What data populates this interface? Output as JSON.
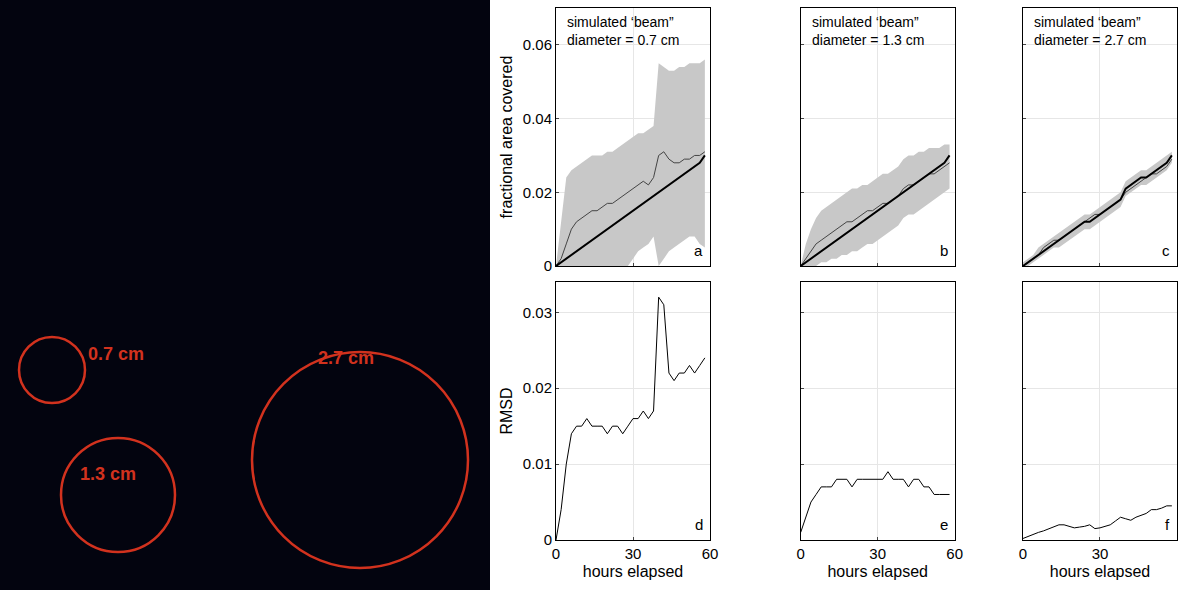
{
  "image": {
    "labels": [
      "0.7 cm",
      "1.3 cm",
      "2.7 cm"
    ],
    "color": "#d2321e"
  },
  "chart_data": [
    {
      "type": "line",
      "title": "simulated ‘beam” diameter = 0.7 cm",
      "panel": "a",
      "y_label": "fractional area covered",
      "tick_labels": "y",
      "grid": true,
      "xlim": [
        0,
        60
      ],
      "xticks": [
        0,
        30,
        60
      ],
      "ylim": [
        0,
        0.07
      ],
      "yticks": [
        0,
        0.02,
        0.04,
        0.06
      ],
      "x": [
        0,
        2,
        4,
        6,
        8,
        10,
        12,
        14,
        16,
        18,
        20,
        22,
        24,
        26,
        28,
        30,
        32,
        34,
        36,
        38,
        40,
        42,
        44,
        46,
        48,
        50,
        52,
        54,
        56,
        58
      ],
      "series": [
        {
          "type": "band",
          "color": "#c8c8c8",
          "lower": [
            0,
            0,
            0,
            0,
            0,
            0,
            0,
            0,
            0,
            0,
            0,
            0,
            0,
            0,
            0,
            0.002,
            0.004,
            0.005,
            0.006,
            0.008,
            0,
            0.002,
            0.004,
            0.005,
            0.006,
            0.007,
            0.008,
            0.008,
            0.006,
            0.005
          ],
          "upper": [
            0,
            0.012,
            0.024,
            0.026,
            0.027,
            0.028,
            0.029,
            0.03,
            0.03,
            0.03,
            0.031,
            0.031,
            0.032,
            0.033,
            0.034,
            0.035,
            0.036,
            0.036,
            0.037,
            0.038,
            0.055,
            0.054,
            0.053,
            0.053,
            0.054,
            0.054,
            0.055,
            0.055,
            0.055,
            0.056
          ]
        },
        {
          "type": "line",
          "color": "#444444",
          "line_style": "thin",
          "values": [
            0,
            0.002,
            0.006,
            0.01,
            0.012,
            0.013,
            0.014,
            0.015,
            0.015,
            0.016,
            0.017,
            0.017,
            0.018,
            0.019,
            0.02,
            0.021,
            0.022,
            0.023,
            0.022,
            0.024,
            0.03,
            0.031,
            0.029,
            0.028,
            0.028,
            0.029,
            0.029,
            0.03,
            0.03,
            0.031
          ]
        },
        {
          "type": "line",
          "color": "#000000",
          "line_style": "thick",
          "values": [
            0,
            0.001,
            0.002,
            0.003,
            0.004,
            0.005,
            0.006,
            0.007,
            0.008,
            0.009,
            0.01,
            0.011,
            0.012,
            0.013,
            0.014,
            0.015,
            0.016,
            0.017,
            0.018,
            0.019,
            0.02,
            0.021,
            0.022,
            0.023,
            0.024,
            0.025,
            0.026,
            0.027,
            0.028,
            0.03
          ]
        }
      ]
    },
    {
      "type": "line",
      "title": "simulated ‘beam” diameter = 1.3 cm",
      "panel": "b",
      "tick_labels": false,
      "grid": true,
      "xlim": [
        0,
        60
      ],
      "xticks": [
        0,
        30,
        60
      ],
      "ylim": [
        0,
        0.07
      ],
      "yticks": [
        0,
        0.02,
        0.04,
        0.06
      ],
      "x": [
        0,
        2,
        4,
        6,
        8,
        10,
        12,
        14,
        16,
        18,
        20,
        22,
        24,
        26,
        28,
        30,
        32,
        34,
        36,
        38,
        40,
        42,
        44,
        46,
        48,
        50,
        52,
        54,
        56,
        58
      ],
      "series": [
        {
          "type": "band",
          "color": "#c8c8c8",
          "lower": [
            0,
            0,
            0,
            0,
            0.001,
            0.001,
            0.002,
            0.002,
            0.003,
            0.003,
            0.004,
            0.004,
            0.005,
            0.006,
            0.006,
            0.007,
            0.008,
            0.009,
            0.01,
            0.011,
            0.013,
            0.014,
            0.014,
            0.015,
            0.016,
            0.017,
            0.018,
            0.019,
            0.02,
            0.021
          ],
          "upper": [
            0,
            0.006,
            0.01,
            0.013,
            0.015,
            0.016,
            0.017,
            0.018,
            0.019,
            0.02,
            0.021,
            0.021,
            0.022,
            0.022,
            0.023,
            0.024,
            0.025,
            0.025,
            0.026,
            0.027,
            0.029,
            0.03,
            0.03,
            0.031,
            0.031,
            0.032,
            0.032,
            0.032,
            0.033,
            0.033
          ]
        },
        {
          "type": "line",
          "color": "#444444",
          "line_style": "thin",
          "values": [
            0,
            0.002,
            0.004,
            0.006,
            0.007,
            0.008,
            0.009,
            0.01,
            0.011,
            0.012,
            0.012,
            0.013,
            0.014,
            0.015,
            0.015,
            0.016,
            0.017,
            0.017,
            0.018,
            0.019,
            0.021,
            0.022,
            0.022,
            0.023,
            0.024,
            0.025,
            0.025,
            0.026,
            0.027,
            0.028
          ]
        },
        {
          "type": "line",
          "color": "#000000",
          "line_style": "thick",
          "values": [
            0,
            0.001,
            0.002,
            0.003,
            0.004,
            0.005,
            0.006,
            0.007,
            0.008,
            0.009,
            0.01,
            0.011,
            0.012,
            0.013,
            0.014,
            0.015,
            0.016,
            0.017,
            0.018,
            0.019,
            0.02,
            0.021,
            0.022,
            0.023,
            0.024,
            0.025,
            0.026,
            0.027,
            0.028,
            0.03
          ]
        }
      ]
    },
    {
      "type": "line",
      "title": "simulated ‘beam” diameter = 2.7 cm",
      "panel": "c",
      "tick_labels": false,
      "grid": true,
      "xlim": [
        0,
        60
      ],
      "xticks": [
        0,
        30,
        60
      ],
      "ylim": [
        0,
        0.07
      ],
      "yticks": [
        0,
        0.02,
        0.04,
        0.06
      ],
      "x": [
        0,
        2,
        4,
        6,
        8,
        10,
        12,
        14,
        16,
        18,
        20,
        22,
        24,
        26,
        28,
        30,
        32,
        34,
        36,
        38,
        40,
        42,
        44,
        46,
        48,
        50,
        52,
        54,
        56,
        58
      ],
      "series": [
        {
          "type": "band",
          "color": "#c8c8c8",
          "lower": [
            0,
            0,
            0.001,
            0.002,
            0.003,
            0.004,
            0.005,
            0.005,
            0.006,
            0.007,
            0.008,
            0.009,
            0.01,
            0.01,
            0.011,
            0.012,
            0.013,
            0.014,
            0.015,
            0.016,
            0.019,
            0.02,
            0.021,
            0.022,
            0.022,
            0.023,
            0.024,
            0.025,
            0.026,
            0.028
          ],
          "upper": [
            0.001,
            0.002,
            0.003,
            0.005,
            0.006,
            0.007,
            0.008,
            0.009,
            0.01,
            0.011,
            0.012,
            0.013,
            0.014,
            0.014,
            0.015,
            0.016,
            0.017,
            0.018,
            0.019,
            0.02,
            0.023,
            0.024,
            0.025,
            0.026,
            0.026,
            0.027,
            0.028,
            0.029,
            0.03,
            0.031
          ]
        },
        {
          "type": "line",
          "color": "#444444",
          "line_style": "thin",
          "values": [
            0,
            0.001,
            0.002,
            0.003,
            0.005,
            0.006,
            0.007,
            0.007,
            0.008,
            0.009,
            0.01,
            0.011,
            0.012,
            0.013,
            0.014,
            0.014,
            0.015,
            0.016,
            0.017,
            0.018,
            0.02,
            0.021,
            0.022,
            0.023,
            0.024,
            0.025,
            0.025,
            0.026,
            0.027,
            0.029
          ]
        },
        {
          "type": "line",
          "color": "#000000",
          "line_style": "thick",
          "values": [
            0,
            0.001,
            0.002,
            0.003,
            0.004,
            0.005,
            0.006,
            0.007,
            0.008,
            0.009,
            0.01,
            0.011,
            0.012,
            0.012,
            0.013,
            0.014,
            0.015,
            0.016,
            0.017,
            0.018,
            0.021,
            0.022,
            0.023,
            0.024,
            0.024,
            0.025,
            0.026,
            0.027,
            0.028,
            0.03
          ]
        }
      ]
    },
    {
      "type": "line",
      "panel": "d",
      "x_label": "hours elapsed",
      "y_label": "RMSD",
      "tick_labels": true,
      "grid": true,
      "xlim": [
        0,
        60
      ],
      "xticks": [
        0,
        30,
        60
      ],
      "ylim": [
        0,
        0.034
      ],
      "yticks": [
        0,
        0.01,
        0.02,
        0.03
      ],
      "x": [
        0,
        2,
        4,
        6,
        8,
        10,
        12,
        14,
        16,
        18,
        20,
        22,
        24,
        26,
        28,
        30,
        32,
        34,
        36,
        38,
        40,
        42,
        44,
        46,
        48,
        50,
        52,
        54,
        56,
        58
      ],
      "series": [
        {
          "type": "line",
          "color": "#000000",
          "line_style": "thin",
          "values": [
            0,
            0.004,
            0.01,
            0.014,
            0.015,
            0.015,
            0.016,
            0.015,
            0.015,
            0.015,
            0.014,
            0.015,
            0.015,
            0.014,
            0.015,
            0.016,
            0.016,
            0.017,
            0.016,
            0.017,
            0.032,
            0.031,
            0.022,
            0.021,
            0.022,
            0.022,
            0.023,
            0.022,
            0.023,
            0.024
          ]
        }
      ]
    },
    {
      "type": "line",
      "panel": "e",
      "x_label": "hours elapsed",
      "tick_labels": "x",
      "grid": true,
      "xlim": [
        0,
        60
      ],
      "xticks": [
        0,
        30,
        60
      ],
      "ylim": [
        0,
        0.034
      ],
      "yticks": [
        0,
        0.01,
        0.02,
        0.03
      ],
      "x": [
        0,
        2,
        4,
        6,
        8,
        10,
        12,
        14,
        16,
        18,
        20,
        22,
        24,
        26,
        28,
        30,
        32,
        34,
        36,
        38,
        40,
        42,
        44,
        46,
        48,
        50,
        52,
        54,
        56,
        58
      ],
      "series": [
        {
          "type": "line",
          "color": "#000000",
          "line_style": "thin",
          "values": [
            0.001,
            0.003,
            0.005,
            0.006,
            0.007,
            0.007,
            0.007,
            0.008,
            0.008,
            0.008,
            0.007,
            0.008,
            0.008,
            0.008,
            0.008,
            0.008,
            0.008,
            0.009,
            0.008,
            0.008,
            0.008,
            0.007,
            0.008,
            0.008,
            0.007,
            0.007,
            0.006,
            0.006,
            0.006,
            0.006
          ]
        }
      ]
    },
    {
      "type": "line",
      "panel": "f",
      "x_label": "hours elapsed",
      "tick_labels": "x",
      "grid": true,
      "xlim": [
        0,
        60
      ],
      "xticks": [
        0,
        30,
        60
      ],
      "ylim": [
        0,
        0.034
      ],
      "yticks": [
        0,
        0.01,
        0.02,
        0.03
      ],
      "x": [
        0,
        2,
        4,
        6,
        8,
        10,
        12,
        14,
        16,
        18,
        20,
        22,
        24,
        26,
        28,
        30,
        32,
        34,
        36,
        38,
        40,
        42,
        44,
        46,
        48,
        50,
        52,
        54,
        56,
        58
      ],
      "series": [
        {
          "type": "line",
          "color": "#000000",
          "line_style": "thin",
          "values": [
            0.0002,
            0.0005,
            0.0008,
            0.001,
            0.0012,
            0.0015,
            0.0018,
            0.002,
            0.002,
            0.0018,
            0.0016,
            0.0017,
            0.0018,
            0.002,
            0.0015,
            0.0016,
            0.0018,
            0.002,
            0.0025,
            0.003,
            0.0028,
            0.0026,
            0.003,
            0.0033,
            0.0035,
            0.004,
            0.004,
            0.0042,
            0.0045,
            0.0045
          ]
        }
      ]
    }
  ]
}
